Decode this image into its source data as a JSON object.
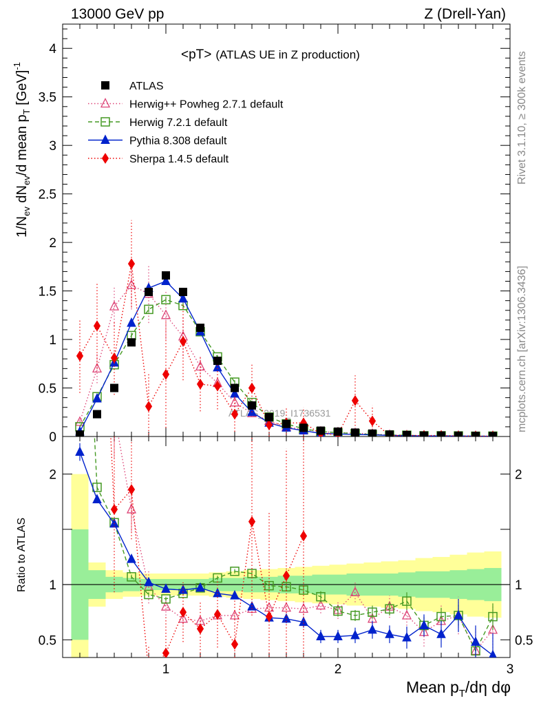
{
  "header": {
    "left": "13000 GeV pp",
    "right": "Z (Drell-Yan)"
  },
  "side_labels": {
    "rivet": "Rivet 3.1.10, ≥ 300k events",
    "mcplots": "mcplots.cern.ch [arXiv:1306.3436]"
  },
  "chart_data": {
    "type": "scatter",
    "title_left": "<pT>",
    "title_right": "(ATLAS UE in Z production)",
    "watermark": "ATLAS_2019_I1736531",
    "x_label": "Mean p_T/dη dφ",
    "x_label_base": "Mean p",
    "x_label_sub": "T",
    "x_label_tail": "/dη dφ",
    "y_label": "1/N_ev dN_ev/d mean p_T [GeV]^-1",
    "ratio_y_label": "Ratio to ATLAS",
    "x_range": [
      0.4,
      3.0
    ],
    "y_range": [
      0,
      4.25
    ],
    "ratio_y_range": [
      0.34,
      2.34
    ],
    "x_ticks": [
      "1",
      "2",
      "3"
    ],
    "y_ticks": [
      "0",
      "0.5",
      "1",
      "1.5",
      "2",
      "2.5",
      "3",
      "3.5",
      "4"
    ],
    "ratio_y_ticks": [
      "0.5",
      "1",
      "2"
    ],
    "x": [
      0.5,
      0.6,
      0.7,
      0.8,
      0.9,
      1.0,
      1.1,
      1.2,
      1.3,
      1.4,
      1.5,
      1.6,
      1.7,
      1.8,
      1.9,
      2.0,
      2.1,
      2.2,
      2.3,
      2.4,
      2.5,
      2.6,
      2.7,
      2.8,
      2.9
    ],
    "data": {
      "name": "ATLAS",
      "values": [
        0.02,
        0.23,
        0.5,
        0.97,
        1.49,
        1.66,
        1.49,
        1.12,
        0.78,
        0.5,
        0.32,
        0.2,
        0.13,
        0.09,
        0.06,
        0.05,
        0.04,
        0.03,
        0.02,
        0.015,
        0.01,
        0.01,
        0.008,
        0.006,
        0.005
      ],
      "band_inner": [
        0.5,
        0.13,
        0.07,
        0.06,
        0.05,
        0.05,
        0.05,
        0.05,
        0.06,
        0.06,
        0.07,
        0.07,
        0.08,
        0.08,
        0.09,
        0.09,
        0.1,
        0.1,
        0.1,
        0.11,
        0.12,
        0.12,
        0.13,
        0.14,
        0.15
      ],
      "band_outer": [
        1.0,
        0.2,
        0.13,
        0.11,
        0.1,
        0.1,
        0.1,
        0.1,
        0.11,
        0.12,
        0.13,
        0.14,
        0.15,
        0.16,
        0.17,
        0.18,
        0.19,
        0.2,
        0.21,
        0.22,
        0.24,
        0.25,
        0.27,
        0.29,
        0.3
      ]
    },
    "series": [
      {
        "name": "Herwig++ Powheg 2.7.1 default",
        "color": "#dd4477",
        "marker": "triangle-open",
        "line": "dotted",
        "values": [
          0.15,
          0.7,
          1.34,
          1.56,
          1.47,
          1.25,
          1.03,
          0.72,
          0.55,
          0.35,
          0.24,
          0.16,
          0.1,
          0.07,
          0.05,
          0.04,
          0.035,
          0.025,
          0.015,
          0.012,
          0.008,
          0.007,
          0.006,
          0.004,
          0.004
        ],
        "errors": [
          0.05,
          0.15,
          0.2,
          0.25,
          0.3,
          0.25,
          0.2,
          0.1,
          0.08,
          0.05,
          0.04,
          0.03,
          0.02,
          0.015,
          0.01,
          0.01,
          0.008,
          0.006,
          0.004,
          0.003,
          0.002,
          0.002,
          0.002,
          0.002,
          0.002
        ],
        "ratio": [
          null,
          3.0,
          2.55,
          1.68,
          0.98,
          0.8,
          0.69,
          0.67,
          0.72,
          0.72,
          0.78,
          0.79,
          0.79,
          0.78,
          0.81,
          0.77,
          0.93,
          0.69,
          0.8,
          0.72,
          0.57,
          0.67,
          0.72,
          0.4,
          0.59
        ],
        "ratio_errors": [
          0,
          0.5,
          0.4,
          0.2,
          0.15,
          0.08,
          0.05,
          0.03,
          0.03,
          0.03,
          0.04,
          0.05,
          0.05,
          0.06,
          0.07,
          0.08,
          0.09,
          0.1,
          0.1,
          0.12,
          0.13,
          0.15,
          0.17,
          0.2,
          0.22
        ]
      },
      {
        "name": "Herwig 7.2.1 default",
        "color": "#449922",
        "marker": "square-open",
        "line": "dashed",
        "values": [
          0.1,
          0.41,
          0.74,
          1.04,
          1.31,
          1.41,
          1.35,
          1.08,
          0.82,
          0.56,
          0.35,
          0.2,
          0.13,
          0.08,
          0.05,
          0.04,
          0.03,
          0.02,
          0.015,
          0.013,
          0.007,
          0.007,
          0.006,
          0.003,
          0.004
        ],
        "errors": [
          0.01,
          0.02,
          0.02,
          0.03,
          0.03,
          0.03,
          0.03,
          0.03,
          0.02,
          0.02,
          0.02,
          0.01,
          0.01,
          0.01,
          0.005,
          0.004,
          0.003,
          0.002,
          0.002,
          0.002,
          0.001,
          0.001,
          0.001,
          0.001,
          0.001
        ],
        "ratio": [
          5.0,
          1.88,
          1.56,
          1.07,
          0.91,
          0.87,
          0.92,
          0.97,
          1.06,
          1.12,
          1.1,
          0.99,
          0.98,
          0.95,
          0.89,
          0.76,
          0.72,
          0.75,
          0.78,
          0.85,
          0.63,
          0.71,
          0.72,
          0.4,
          0.71
        ],
        "ratio_errors": [
          0,
          0.04,
          0.03,
          0.02,
          0.02,
          0.02,
          0.02,
          0.02,
          0.02,
          0.02,
          0.03,
          0.03,
          0.04,
          0.04,
          0.05,
          0.05,
          0.05,
          0.06,
          0.06,
          0.08,
          0.08,
          0.08,
          0.1,
          0.1,
          0.12
        ]
      },
      {
        "name": "Pythia 8.308 default",
        "color": "#0022cc",
        "marker": "triangle",
        "line": "solid",
        "values": [
          0.05,
          0.39,
          0.76,
          1.17,
          1.53,
          1.6,
          1.42,
          1.08,
          0.71,
          0.44,
          0.25,
          0.14,
          0.09,
          0.06,
          0.032,
          0.026,
          0.021,
          0.017,
          0.011,
          0.008,
          0.006,
          0.005,
          0.005,
          0.003,
          0.002
        ],
        "errors": [
          0.01,
          0.02,
          0.02,
          0.02,
          0.03,
          0.03,
          0.03,
          0.02,
          0.02,
          0.01,
          0.01,
          0.01,
          0.005,
          0.004,
          0.003,
          0.003,
          0.002,
          0.002,
          0.002,
          0.001,
          0.001,
          0.001,
          0.001,
          0.001,
          0.001
        ],
        "ratio": [
          2.2,
          1.77,
          1.55,
          1.23,
          1.02,
          0.96,
          0.95,
          0.97,
          0.92,
          0.9,
          0.8,
          0.7,
          0.69,
          0.66,
          0.53,
          0.53,
          0.54,
          0.59,
          0.55,
          0.52,
          0.63,
          0.55,
          0.72,
          0.48,
          0.36
        ],
        "ratio_errors": [
          0.08,
          0.03,
          0.02,
          0.02,
          0.02,
          0.02,
          0.02,
          0.02,
          0.02,
          0.02,
          0.03,
          0.03,
          0.04,
          0.05,
          0.06,
          0.06,
          0.07,
          0.08,
          0.08,
          0.1,
          0.1,
          0.12,
          0.15,
          0.15,
          0.2
        ]
      },
      {
        "name": "Sherpa 1.4.5 default",
        "color": "#ee0000",
        "marker": "diamond",
        "line": "dotted",
        "values": [
          0.83,
          1.14,
          0.81,
          1.78,
          0.31,
          0.64,
          0.98,
          0.54,
          0.52,
          0.23,
          0.5,
          0.12,
          0.14,
          0.14,
          0.03,
          0.02,
          0.37,
          0.16,
          0.01,
          0.01,
          0.01,
          0.01,
          0.005,
          0.003,
          0.003
        ],
        "errors": [
          0.38,
          0.44,
          0.38,
          0.45,
          0.35,
          0.55,
          0.4,
          0.28,
          0.24,
          0.18,
          0.25,
          0.12,
          0.15,
          0.16,
          0.05,
          0.04,
          0.26,
          0.16,
          0.01,
          0.01,
          0.01,
          0.01,
          0.005,
          0.003,
          0.003
        ],
        "ratio": [
          null,
          4.9,
          1.68,
          1.86,
          0.2,
          0.38,
          0.75,
          0.6,
          0.73,
          0.46,
          1.57,
          0.71,
          1.08,
          1.44,
          null,
          null,
          null,
          null,
          null,
          null,
          null,
          null,
          null,
          null,
          null
        ],
        "ratio_errors": [
          0,
          1.9,
          0.75,
          0.45,
          0.25,
          0.33,
          0.27,
          0.25,
          0.3,
          0.4,
          0.85,
          0.95,
          1.15,
          1.3,
          0,
          0,
          0,
          0,
          0,
          0,
          0,
          0,
          0,
          0,
          0
        ]
      }
    ]
  }
}
